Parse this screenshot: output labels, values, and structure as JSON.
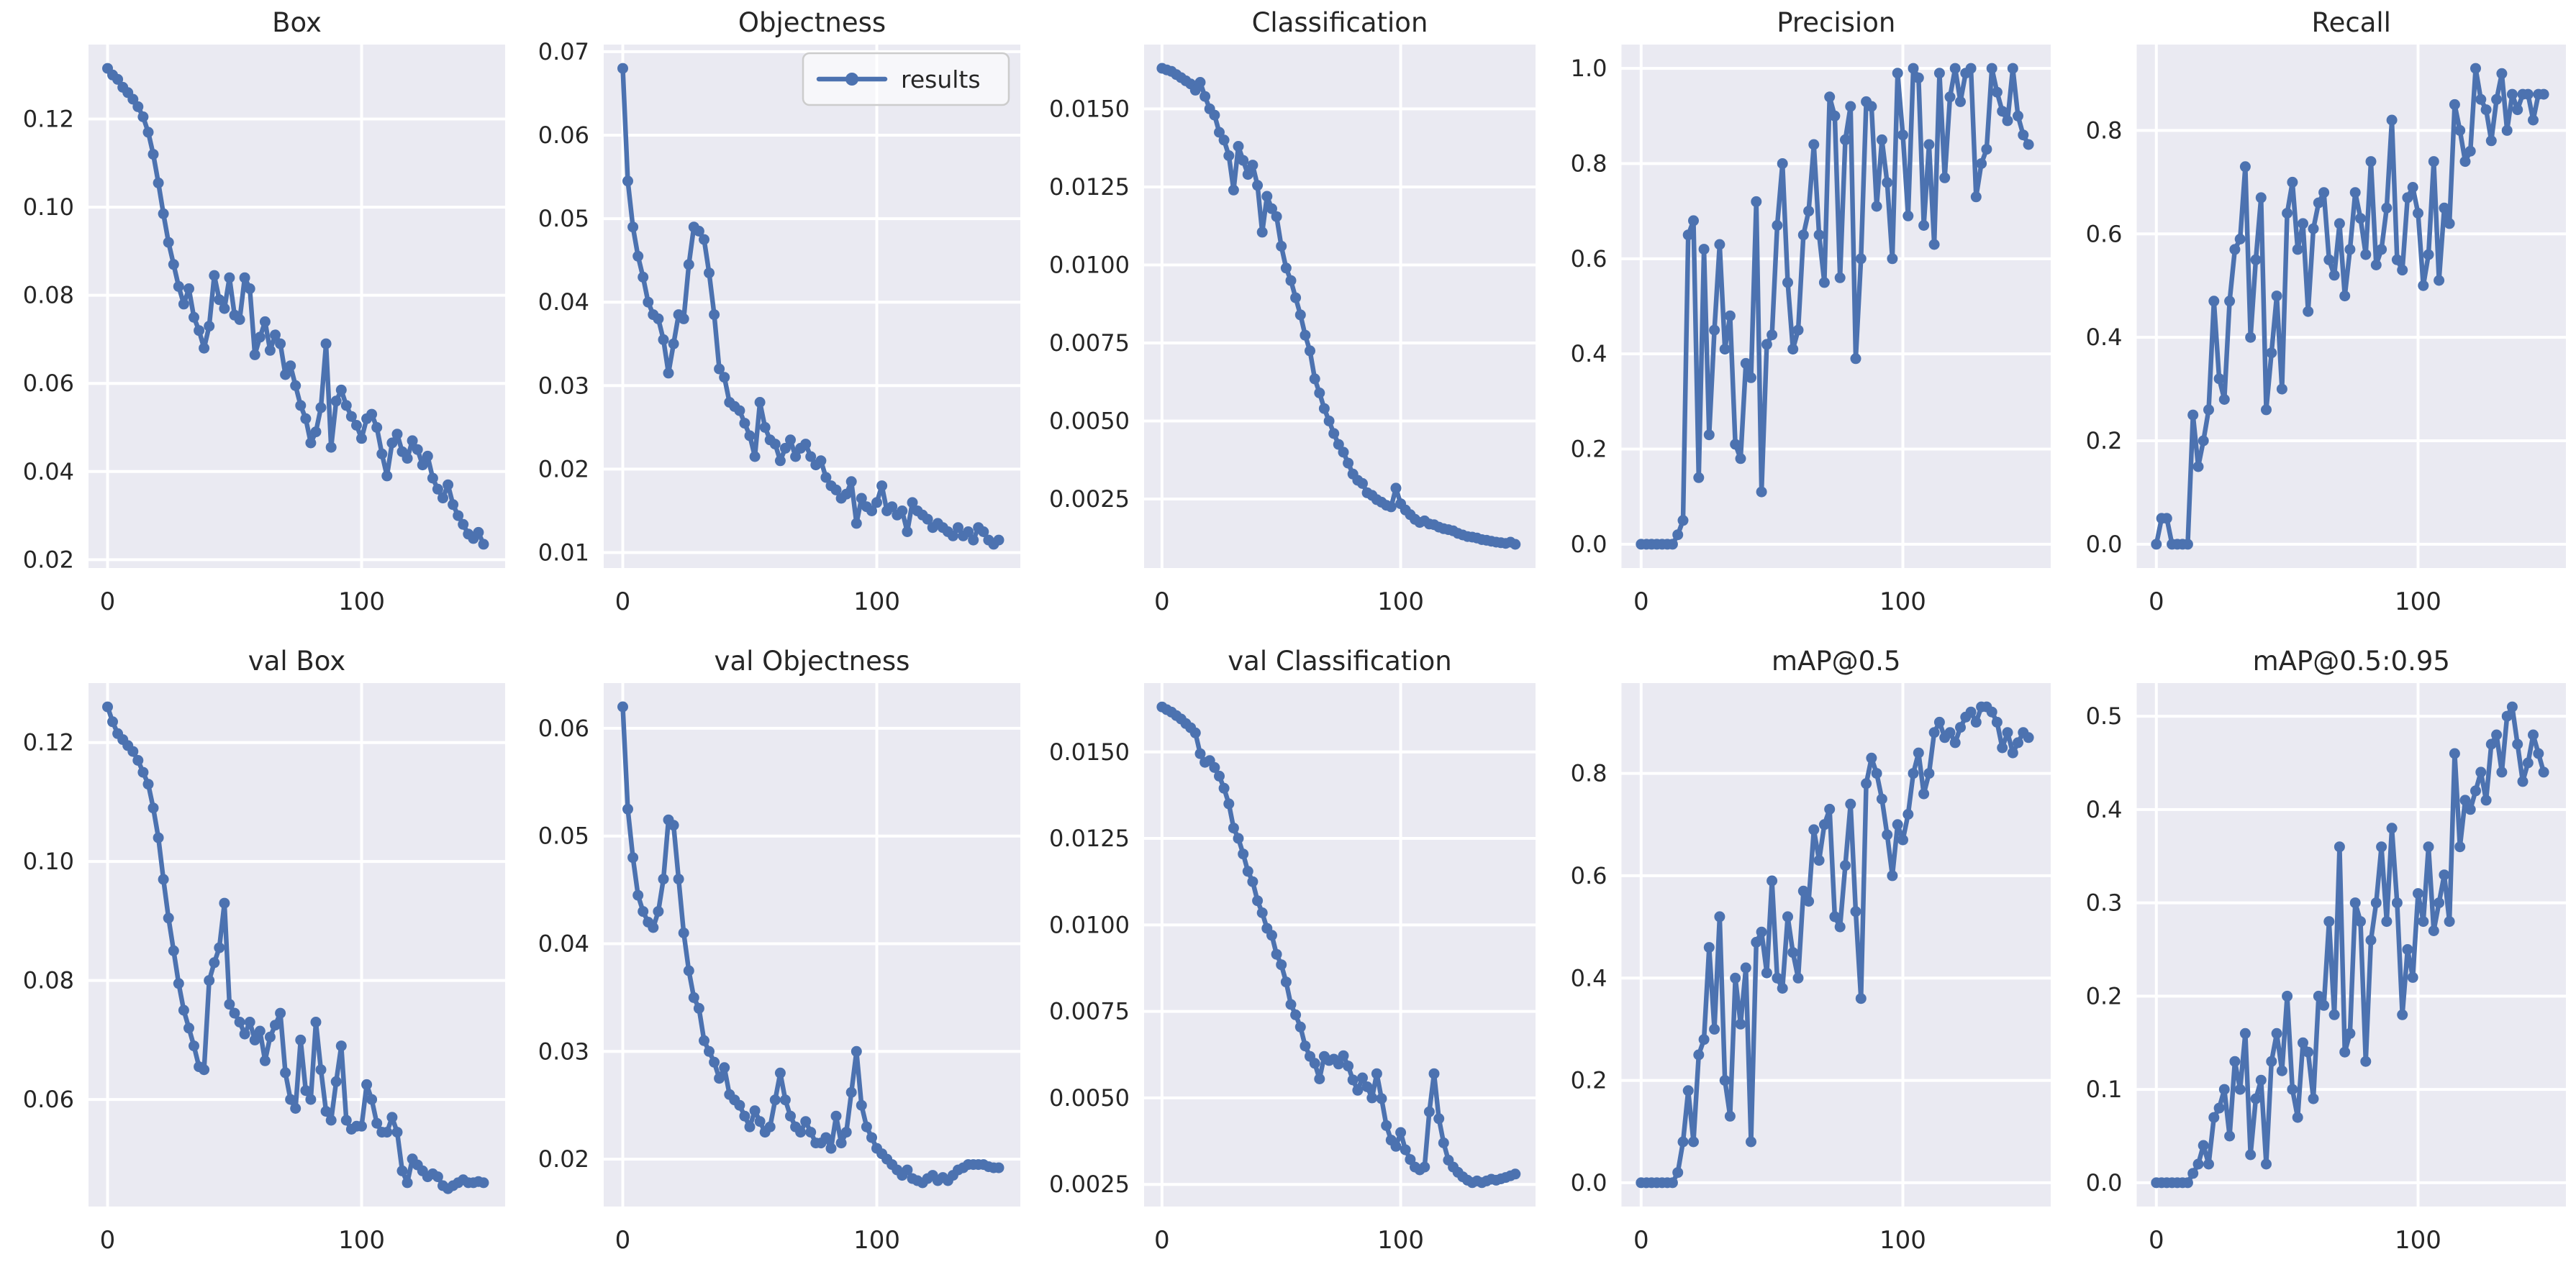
{
  "figure": {
    "background": "#ffffff",
    "axes_background": "#eaeaf2",
    "grid_color": "#ffffff",
    "line_color": "#4c72b0",
    "text_color": "#262626",
    "legend": {
      "label": "results",
      "position": "upper right"
    }
  },
  "epochs_x": [
    0,
    2,
    4,
    6,
    8,
    10,
    12,
    14,
    16,
    18,
    20,
    22,
    24,
    26,
    28,
    30,
    32,
    34,
    36,
    38,
    40,
    42,
    44,
    46,
    48,
    50,
    52,
    54,
    56,
    58,
    60,
    62,
    64,
    66,
    68,
    70,
    72,
    74,
    76,
    78,
    80,
    82,
    84,
    86,
    88,
    90,
    92,
    94,
    96,
    98,
    100,
    102,
    104,
    106,
    108,
    110,
    112,
    114,
    116,
    118,
    120,
    122,
    124,
    126,
    128,
    130,
    132,
    134,
    136,
    138,
    140,
    142,
    144,
    146,
    148
  ],
  "chart_data": [
    {
      "type": "line",
      "marker": "o",
      "title": "Box",
      "xlabel": "",
      "ylabel": "",
      "grid": true,
      "legend": false,
      "xlim": [
        -7.5,
        156.5
      ],
      "ylim": [
        0.0181,
        0.1369
      ],
      "xtick_values": [
        0,
        100
      ],
      "xtick_labels": [
        "0",
        "100"
      ],
      "ytick_values": [
        0.02,
        0.04,
        0.06,
        0.08,
        0.1,
        0.12
      ],
      "ytick_labels": [
        "0.02",
        "0.04",
        "0.06",
        "0.08",
        "0.10",
        "0.12"
      ],
      "y": [
        0.1315,
        0.13,
        0.129,
        0.1272,
        0.126,
        0.1245,
        0.1228,
        0.1205,
        0.117,
        0.112,
        0.1055,
        0.0985,
        0.092,
        0.087,
        0.082,
        0.078,
        0.0815,
        0.075,
        0.072,
        0.068,
        0.073,
        0.0845,
        0.079,
        0.077,
        0.084,
        0.0755,
        0.0745,
        0.084,
        0.0815,
        0.0665,
        0.0705,
        0.074,
        0.0675,
        0.071,
        0.069,
        0.062,
        0.064,
        0.0595,
        0.055,
        0.052,
        0.0465,
        0.049,
        0.0545,
        0.069,
        0.0455,
        0.056,
        0.0585,
        0.055,
        0.0525,
        0.0505,
        0.0475,
        0.052,
        0.053,
        0.05,
        0.044,
        0.039,
        0.0465,
        0.0485,
        0.0445,
        0.043,
        0.047,
        0.045,
        0.0415,
        0.0435,
        0.0385,
        0.036,
        0.034,
        0.037,
        0.0325,
        0.03,
        0.028,
        0.0258,
        0.0248,
        0.0262,
        0.0235
      ]
    },
    {
      "type": "line",
      "marker": "o",
      "title": "Objectness",
      "xlabel": "",
      "ylabel": "",
      "grid": true,
      "legend": true,
      "xlim": [
        -7.5,
        156.5
      ],
      "ylim": [
        0.00815,
        0.07085
      ],
      "xtick_values": [
        0,
        100
      ],
      "xtick_labels": [
        "0",
        "100"
      ],
      "ytick_values": [
        0.01,
        0.02,
        0.03,
        0.04,
        0.05,
        0.06,
        0.07
      ],
      "ytick_labels": [
        "0.01",
        "0.02",
        "0.03",
        "0.04",
        "0.05",
        "0.06",
        "0.07"
      ],
      "y": [
        0.068,
        0.0545,
        0.049,
        0.0455,
        0.043,
        0.04,
        0.0385,
        0.038,
        0.0355,
        0.0315,
        0.035,
        0.0385,
        0.038,
        0.0445,
        0.049,
        0.0485,
        0.0475,
        0.0435,
        0.0385,
        0.032,
        0.031,
        0.028,
        0.0275,
        0.027,
        0.0255,
        0.024,
        0.0215,
        0.028,
        0.025,
        0.0235,
        0.023,
        0.021,
        0.0225,
        0.0235,
        0.0215,
        0.0225,
        0.023,
        0.0215,
        0.0205,
        0.021,
        0.019,
        0.018,
        0.0175,
        0.0165,
        0.017,
        0.0185,
        0.0135,
        0.0165,
        0.0155,
        0.015,
        0.016,
        0.018,
        0.015,
        0.0155,
        0.0145,
        0.015,
        0.0125,
        0.016,
        0.015,
        0.0145,
        0.014,
        0.013,
        0.0135,
        0.013,
        0.0125,
        0.012,
        0.013,
        0.012,
        0.0125,
        0.0115,
        0.013,
        0.0125,
        0.0115,
        0.011,
        0.0115
      ]
    },
    {
      "type": "line",
      "marker": "o",
      "title": "Classification",
      "xlabel": "",
      "ylabel": "",
      "grid": true,
      "legend": false,
      "xlim": [
        -7.5,
        156.5
      ],
      "ylim": [
        0.00029,
        0.01706
      ],
      "xtick_values": [
        0,
        100
      ],
      "xtick_labels": [
        "0",
        "100"
      ],
      "ytick_values": [
        0.0025,
        0.005,
        0.0075,
        0.01,
        0.0125,
        0.015
      ],
      "ytick_labels": [
        "0.0025",
        "0.0050",
        "0.0075",
        "0.0100",
        "0.0125",
        "0.0150"
      ],
      "y": [
        0.0163,
        0.01625,
        0.0162,
        0.0161,
        0.016,
        0.0159,
        0.0158,
        0.0156,
        0.01585,
        0.0154,
        0.015,
        0.0148,
        0.01425,
        0.014,
        0.0135,
        0.0124,
        0.0138,
        0.01335,
        0.0129,
        0.0132,
        0.01255,
        0.01105,
        0.0122,
        0.0118,
        0.01155,
        0.0106,
        0.0099,
        0.0095,
        0.00895,
        0.0084,
        0.00775,
        0.00725,
        0.00635,
        0.0059,
        0.0054,
        0.005,
        0.0046,
        0.00425,
        0.004,
        0.00365,
        0.0033,
        0.0031,
        0.003,
        0.0027,
        0.00262,
        0.00248,
        0.0024,
        0.0023,
        0.00225,
        0.00285,
        0.00235,
        0.00215,
        0.002,
        0.00185,
        0.00175,
        0.0018,
        0.0017,
        0.00168,
        0.0016,
        0.00155,
        0.00152,
        0.00148,
        0.0014,
        0.00135,
        0.0013,
        0.00128,
        0.00125,
        0.0012,
        0.00118,
        0.00115,
        0.00112,
        0.0011,
        0.00108,
        0.00112,
        0.00105
      ]
    },
    {
      "type": "line",
      "marker": "o",
      "title": "Precision",
      "xlabel": "",
      "ylabel": "",
      "grid": true,
      "legend": false,
      "xlim": [
        -7.5,
        156.5
      ],
      "ylim": [
        -0.05,
        1.05
      ],
      "xtick_values": [
        0,
        100
      ],
      "xtick_labels": [
        "0",
        "100"
      ],
      "ytick_values": [
        0.0,
        0.2,
        0.4,
        0.6,
        0.8,
        1.0
      ],
      "ytick_labels": [
        "0.0",
        "0.2",
        "0.4",
        "0.6",
        "0.8",
        "1.0"
      ],
      "y": [
        0.0,
        0.0,
        0.0,
        0.0,
        0.0,
        0.0,
        0.0,
        0.02,
        0.05,
        0.65,
        0.68,
        0.14,
        0.62,
        0.23,
        0.45,
        0.63,
        0.41,
        0.48,
        0.21,
        0.18,
        0.38,
        0.35,
        0.72,
        0.11,
        0.42,
        0.44,
        0.67,
        0.8,
        0.55,
        0.41,
        0.45,
        0.65,
        0.7,
        0.84,
        0.65,
        0.55,
        0.94,
        0.9,
        0.56,
        0.85,
        0.92,
        0.39,
        0.6,
        0.93,
        0.92,
        0.71,
        0.85,
        0.76,
        0.6,
        0.99,
        0.86,
        0.69,
        1.0,
        0.98,
        0.67,
        0.84,
        0.63,
        0.99,
        0.77,
        0.94,
        1.0,
        0.93,
        0.99,
        1.0,
        0.73,
        0.8,
        0.83,
        1.0,
        0.95,
        0.91,
        0.89,
        1.0,
        0.9,
        0.86,
        0.84
      ]
    },
    {
      "type": "line",
      "marker": "o",
      "title": "Recall",
      "xlabel": "",
      "ylabel": "",
      "grid": true,
      "legend": false,
      "xlim": [
        -7.5,
        156.5
      ],
      "ylim": [
        -0.046,
        0.966
      ],
      "xtick_values": [
        0,
        100
      ],
      "xtick_labels": [
        "0",
        "100"
      ],
      "ytick_values": [
        0.0,
        0.2,
        0.4,
        0.6,
        0.8
      ],
      "ytick_labels": [
        "0.0",
        "0.2",
        "0.4",
        "0.6",
        "0.8"
      ],
      "y": [
        0.0,
        0.05,
        0.05,
        0.0,
        0.0,
        0.0,
        0.0,
        0.25,
        0.15,
        0.2,
        0.26,
        0.47,
        0.32,
        0.28,
        0.47,
        0.57,
        0.59,
        0.73,
        0.4,
        0.55,
        0.67,
        0.26,
        0.37,
        0.48,
        0.3,
        0.64,
        0.7,
        0.57,
        0.62,
        0.45,
        0.61,
        0.66,
        0.68,
        0.55,
        0.52,
        0.62,
        0.48,
        0.57,
        0.68,
        0.63,
        0.56,
        0.74,
        0.54,
        0.57,
        0.65,
        0.82,
        0.55,
        0.53,
        0.67,
        0.69,
        0.64,
        0.5,
        0.56,
        0.74,
        0.51,
        0.65,
        0.62,
        0.85,
        0.8,
        0.74,
        0.76,
        0.92,
        0.86,
        0.84,
        0.78,
        0.86,
        0.91,
        0.8,
        0.87,
        0.84,
        0.87,
        0.87,
        0.82,
        0.87,
        0.87
      ]
    },
    {
      "type": "line",
      "marker": "o",
      "title": "val Box",
      "xlabel": "",
      "ylabel": "",
      "grid": true,
      "legend": false,
      "xlim": [
        -7.5,
        156.5
      ],
      "ylim": [
        0.042,
        0.13
      ],
      "xtick_values": [
        0,
        100
      ],
      "xtick_labels": [
        "0",
        "100"
      ],
      "ytick_values": [
        0.06,
        0.08,
        0.1,
        0.12
      ],
      "ytick_labels": [
        "0.06",
        "0.08",
        "0.10",
        "0.12"
      ],
      "y": [
        0.126,
        0.1235,
        0.1215,
        0.1205,
        0.1195,
        0.1185,
        0.117,
        0.115,
        0.113,
        0.109,
        0.104,
        0.097,
        0.0905,
        0.085,
        0.0795,
        0.075,
        0.072,
        0.069,
        0.0655,
        0.065,
        0.08,
        0.083,
        0.0855,
        0.093,
        0.076,
        0.0745,
        0.073,
        0.071,
        0.073,
        0.07,
        0.0715,
        0.0665,
        0.0705,
        0.0725,
        0.0745,
        0.0645,
        0.06,
        0.0585,
        0.07,
        0.0615,
        0.06,
        0.073,
        0.065,
        0.058,
        0.0565,
        0.063,
        0.069,
        0.0565,
        0.055,
        0.0555,
        0.0555,
        0.0625,
        0.06,
        0.056,
        0.0545,
        0.0545,
        0.057,
        0.0545,
        0.048,
        0.046,
        0.05,
        0.049,
        0.048,
        0.047,
        0.0475,
        0.047,
        0.0455,
        0.045,
        0.0455,
        0.046,
        0.0465,
        0.046,
        0.046,
        0.0462,
        0.046
      ]
    },
    {
      "type": "line",
      "marker": "o",
      "title": "val Objectness",
      "xlabel": "",
      "ylabel": "",
      "grid": true,
      "legend": false,
      "xlim": [
        -7.5,
        156.5
      ],
      "ylim": [
        0.0156,
        0.0642
      ],
      "xtick_values": [
        0,
        100
      ],
      "xtick_labels": [
        "0",
        "100"
      ],
      "ytick_values": [
        0.02,
        0.03,
        0.04,
        0.05,
        0.06
      ],
      "ytick_labels": [
        "0.02",
        "0.03",
        "0.04",
        "0.05",
        "0.06"
      ],
      "y": [
        0.062,
        0.0525,
        0.048,
        0.0445,
        0.043,
        0.042,
        0.0415,
        0.043,
        0.046,
        0.0515,
        0.051,
        0.046,
        0.041,
        0.0375,
        0.035,
        0.034,
        0.031,
        0.03,
        0.029,
        0.0275,
        0.0285,
        0.026,
        0.0255,
        0.025,
        0.024,
        0.023,
        0.0245,
        0.0235,
        0.0225,
        0.023,
        0.0255,
        0.028,
        0.0255,
        0.024,
        0.023,
        0.0225,
        0.0235,
        0.0225,
        0.0215,
        0.0215,
        0.022,
        0.021,
        0.024,
        0.0215,
        0.0225,
        0.0262,
        0.03,
        0.025,
        0.023,
        0.022,
        0.021,
        0.0205,
        0.02,
        0.0195,
        0.019,
        0.0185,
        0.019,
        0.0182,
        0.018,
        0.0178,
        0.0182,
        0.0185,
        0.018,
        0.0183,
        0.018,
        0.0185,
        0.019,
        0.0192,
        0.0195,
        0.0195,
        0.0195,
        0.0195,
        0.0193,
        0.0192,
        0.0192
      ]
    },
    {
      "type": "line",
      "marker": "o",
      "title": "val Classification",
      "xlabel": "",
      "ylabel": "",
      "grid": true,
      "legend": false,
      "xlim": [
        -7.5,
        156.5
      ],
      "ylim": [
        0.00186,
        0.01699
      ],
      "xtick_values": [
        0,
        100
      ],
      "xtick_labels": [
        "0",
        "100"
      ],
      "ytick_values": [
        0.0025,
        0.005,
        0.0075,
        0.01,
        0.0125,
        0.015
      ],
      "ytick_labels": [
        "0.0025",
        "0.0050",
        "0.0075",
        "0.0100",
        "0.0125",
        "0.0150"
      ],
      "y": [
        0.0163,
        0.01622,
        0.01615,
        0.01605,
        0.01595,
        0.01582,
        0.0157,
        0.01555,
        0.01495,
        0.0147,
        0.01475,
        0.01455,
        0.0143,
        0.01395,
        0.0135,
        0.0128,
        0.0125,
        0.01205,
        0.01155,
        0.01125,
        0.0107,
        0.01035,
        0.0099,
        0.0097,
        0.00915,
        0.00885,
        0.00835,
        0.0077,
        0.0074,
        0.00705,
        0.0065,
        0.0062,
        0.006,
        0.00555,
        0.0062,
        0.00608,
        0.00612,
        0.00598,
        0.00622,
        0.00592,
        0.00552,
        0.00522,
        0.00558,
        0.00532,
        0.005,
        0.0057,
        0.00498,
        0.0042,
        0.00378,
        0.0036,
        0.004,
        0.0035,
        0.00322,
        0.003,
        0.00292,
        0.003,
        0.0046,
        0.0057,
        0.0044,
        0.0037,
        0.0032,
        0.003,
        0.00285,
        0.00272,
        0.00262,
        0.00255,
        0.0026,
        0.00255,
        0.0026,
        0.00265,
        0.00262,
        0.00266,
        0.0027,
        0.00275,
        0.0028
      ]
    },
    {
      "type": "line",
      "marker": "o",
      "title": "mAP@0.5",
      "xlabel": "",
      "ylabel": "",
      "grid": true,
      "legend": false,
      "xlim": [
        -7.5,
        156.5
      ],
      "ylim": [
        -0.0465,
        0.9765
      ],
      "xtick_values": [
        0,
        100
      ],
      "xtick_labels": [
        "0",
        "100"
      ],
      "ytick_values": [
        0.0,
        0.2,
        0.4,
        0.6,
        0.8
      ],
      "ytick_labels": [
        "0.0",
        "0.2",
        "0.4",
        "0.6",
        "0.8"
      ],
      "y": [
        0.0,
        0.0,
        0.0,
        0.0,
        0.0,
        0.0,
        0.0,
        0.02,
        0.08,
        0.18,
        0.08,
        0.25,
        0.28,
        0.46,
        0.3,
        0.52,
        0.2,
        0.13,
        0.4,
        0.31,
        0.42,
        0.08,
        0.47,
        0.49,
        0.41,
        0.59,
        0.4,
        0.38,
        0.52,
        0.45,
        0.4,
        0.57,
        0.55,
        0.69,
        0.63,
        0.7,
        0.73,
        0.52,
        0.5,
        0.62,
        0.74,
        0.53,
        0.36,
        0.78,
        0.83,
        0.8,
        0.75,
        0.68,
        0.6,
        0.7,
        0.67,
        0.72,
        0.8,
        0.84,
        0.76,
        0.8,
        0.88,
        0.9,
        0.87,
        0.88,
        0.86,
        0.89,
        0.91,
        0.92,
        0.9,
        0.93,
        0.93,
        0.92,
        0.9,
        0.85,
        0.88,
        0.84,
        0.86,
        0.88,
        0.87
      ]
    },
    {
      "type": "line",
      "marker": "o",
      "title": "mAP@0.5:0.95",
      "xlabel": "",
      "ylabel": "",
      "grid": true,
      "legend": false,
      "xlim": [
        -7.5,
        156.5
      ],
      "ylim": [
        -0.0255,
        0.5355
      ],
      "xtick_values": [
        0,
        100
      ],
      "xtick_labels": [
        "0",
        "100"
      ],
      "ytick_values": [
        0.0,
        0.1,
        0.2,
        0.3,
        0.4,
        0.5
      ],
      "ytick_labels": [
        "0.0",
        "0.1",
        "0.2",
        "0.3",
        "0.4",
        "0.5"
      ],
      "y": [
        0.0,
        0.0,
        0.0,
        0.0,
        0.0,
        0.0,
        0.0,
        0.01,
        0.02,
        0.04,
        0.02,
        0.07,
        0.08,
        0.1,
        0.05,
        0.13,
        0.1,
        0.16,
        0.03,
        0.09,
        0.11,
        0.02,
        0.13,
        0.16,
        0.12,
        0.2,
        0.1,
        0.07,
        0.15,
        0.14,
        0.09,
        0.2,
        0.19,
        0.28,
        0.18,
        0.36,
        0.14,
        0.16,
        0.3,
        0.28,
        0.13,
        0.26,
        0.3,
        0.36,
        0.28,
        0.38,
        0.3,
        0.18,
        0.25,
        0.22,
        0.31,
        0.28,
        0.36,
        0.27,
        0.3,
        0.33,
        0.28,
        0.46,
        0.36,
        0.41,
        0.4,
        0.42,
        0.44,
        0.41,
        0.47,
        0.48,
        0.44,
        0.5,
        0.51,
        0.47,
        0.43,
        0.45,
        0.48,
        0.46,
        0.44
      ]
    }
  ]
}
